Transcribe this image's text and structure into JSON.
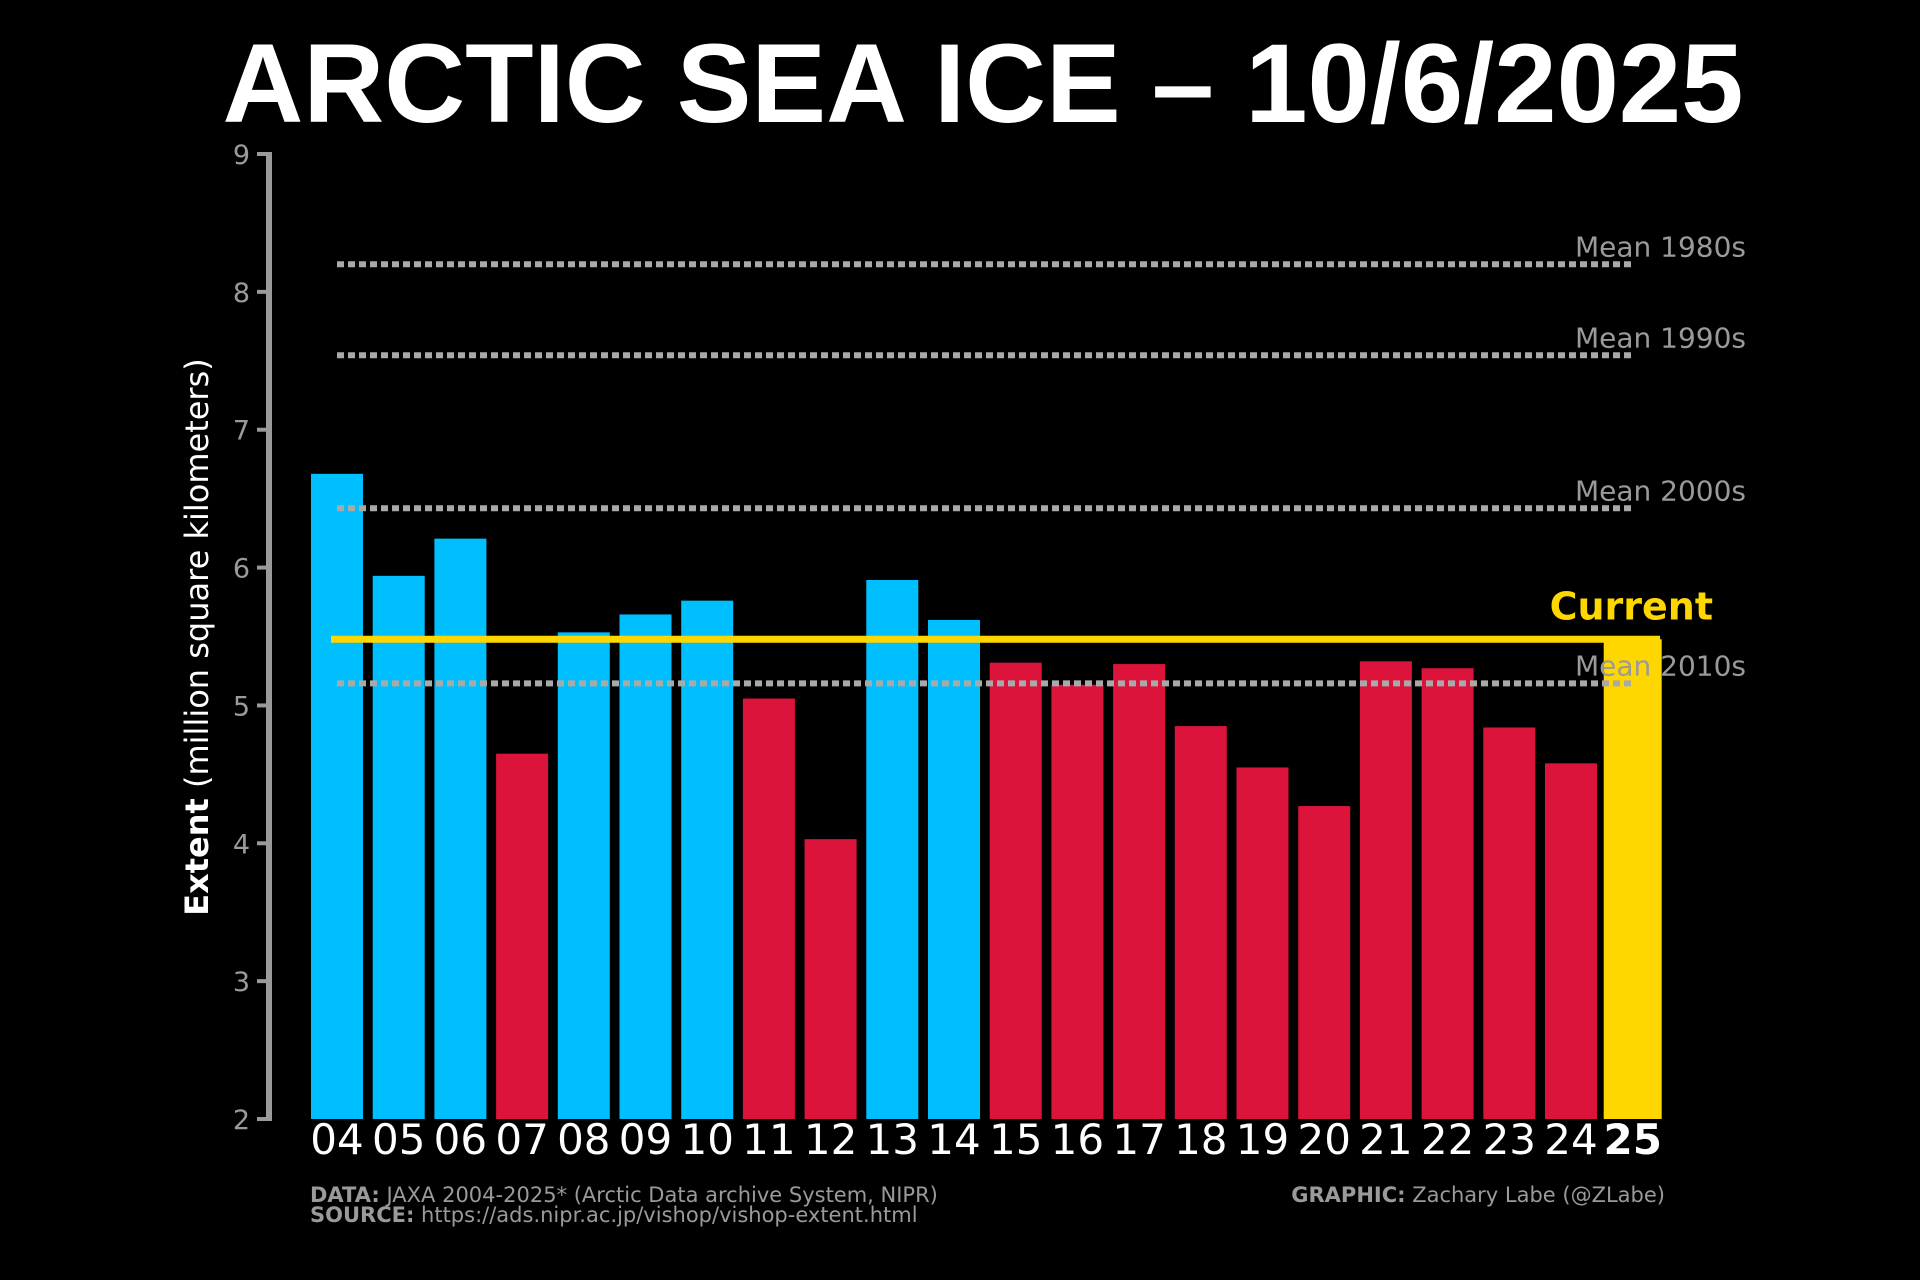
{
  "chart_data": {
    "type": "bar",
    "title": "ARCTIC SEA ICE – 10/6/2025",
    "ylabel_bold": "Extent",
    "ylabel_rest": " (million square kilometers)",
    "ylim": [
      2,
      9
    ],
    "yticks": [
      2,
      3,
      4,
      5,
      6,
      7,
      8,
      9
    ],
    "grid": false,
    "categories": [
      "04",
      "05",
      "06",
      "07",
      "08",
      "09",
      "10",
      "11",
      "12",
      "13",
      "14",
      "15",
      "16",
      "17",
      "18",
      "19",
      "20",
      "21",
      "22",
      "23",
      "24",
      "25"
    ],
    "values": [
      6.68,
      5.94,
      6.21,
      4.65,
      5.53,
      5.66,
      5.76,
      5.05,
      4.03,
      5.91,
      5.62,
      5.31,
      5.15,
      5.3,
      4.85,
      4.55,
      4.27,
      5.32,
      5.27,
      4.84,
      4.58,
      5.48
    ],
    "colors": {
      "above_current": "#00BFFF",
      "below_current": "#DC143C",
      "current": "#FFD700",
      "mean_lines": "#A9A9A9",
      "background": "#000000"
    },
    "reference_lines": [
      {
        "label": "Mean 1980s",
        "value": 8.2
      },
      {
        "label": "Mean 1990s",
        "value": 7.54
      },
      {
        "label": "Mean 2000s",
        "value": 6.43
      },
      {
        "label": "Mean 2010s",
        "value": 5.16
      }
    ],
    "current_line": {
      "label": "Current",
      "value": 5.48
    }
  },
  "footer": {
    "data_label": "DATA:",
    "data_text": " JAXA 2004-2025* (Arctic Data archive System, NIPR)",
    "source_label": "SOURCE:",
    "source_text": " https://ads.nipr.ac.jp/vishop/vishop-extent.html",
    "graphic_label": "GRAPHIC:",
    "graphic_text": " Zachary Labe (@ZLabe)"
  }
}
